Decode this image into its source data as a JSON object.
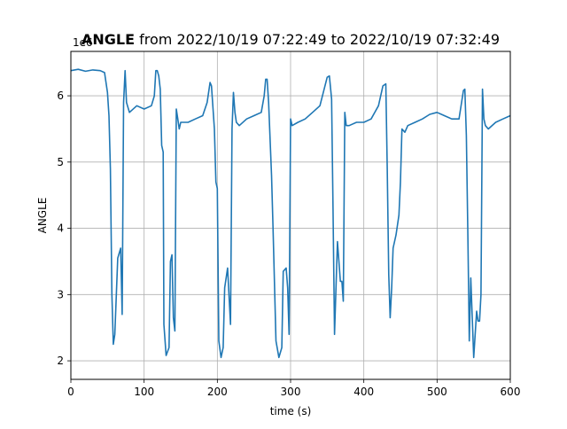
{
  "chart_data": {
    "type": "line",
    "title_bold": "ANGLE",
    "title_rest": " from 2022/10/19 07:22:49 to 2022/10/19 07:32:49",
    "xlabel": "time (s)",
    "ylabel": "ANGLE",
    "y_multiplier_label": "1e6",
    "xlim": [
      0,
      600
    ],
    "ylim": [
      1.72,
      6.67
    ],
    "x_ticks": [
      0,
      100,
      200,
      300,
      400,
      500,
      600
    ],
    "y_ticks": [
      2,
      3,
      4,
      5,
      6
    ],
    "grid": true,
    "line_color": "#1f77b4",
    "series": [
      {
        "x": [
          0,
          10,
          20,
          30,
          40,
          46,
          50,
          52,
          54,
          56,
          58,
          60,
          64,
          68,
          70,
          72,
          74,
          76,
          80,
          90,
          100,
          110,
          114,
          116,
          118,
          120,
          122,
          124,
          126,
          127,
          130,
          134,
          136,
          138,
          140,
          142,
          144,
          146,
          148,
          150,
          160,
          170,
          180,
          186,
          190,
          192,
          196,
          198,
          200,
          202,
          205,
          208,
          210,
          214,
          218,
          220,
          222,
          224,
          226,
          230,
          240,
          250,
          260,
          264,
          266,
          268,
          270,
          274,
          276,
          280,
          284,
          288,
          290,
          294,
          296,
          298,
          300,
          302,
          310,
          320,
          330,
          340,
          350,
          353,
          356,
          358,
          360,
          364,
          368,
          370,
          372,
          374,
          376,
          380,
          390,
          400,
          410,
          420,
          426,
          430,
          432,
          434,
          436,
          438,
          440,
          444,
          448,
          450,
          452,
          456,
          460,
          470,
          480,
          490,
          500,
          510,
          520,
          530,
          536,
          538,
          540,
          542,
          544,
          546,
          550,
          554,
          556,
          558,
          560,
          562,
          564,
          566,
          570,
          580,
          590,
          600
        ],
        "values": [
          6.38,
          6.4,
          6.37,
          6.39,
          6.38,
          6.35,
          6.05,
          5.7,
          4.9,
          3.0,
          2.25,
          2.4,
          3.55,
          3.7,
          2.7,
          5.9,
          6.38,
          5.9,
          5.75,
          5.85,
          5.8,
          5.85,
          6.0,
          6.38,
          6.38,
          6.3,
          6.1,
          5.25,
          5.15,
          2.55,
          2.08,
          2.2,
          3.5,
          3.6,
          2.65,
          2.45,
          5.8,
          5.65,
          5.5,
          5.6,
          5.6,
          5.65,
          5.7,
          5.9,
          6.2,
          6.15,
          5.5,
          4.7,
          4.6,
          2.3,
          2.05,
          2.2,
          3.1,
          3.4,
          2.55,
          5.5,
          6.05,
          5.75,
          5.6,
          5.55,
          5.65,
          5.7,
          5.75,
          6.0,
          6.25,
          6.25,
          5.9,
          4.8,
          4.0,
          2.3,
          2.05,
          2.2,
          3.35,
          3.4,
          3.1,
          2.4,
          5.65,
          5.55,
          5.6,
          5.65,
          5.75,
          5.85,
          6.28,
          6.3,
          5.95,
          4.3,
          2.4,
          3.8,
          3.2,
          3.2,
          2.9,
          5.75,
          5.55,
          5.55,
          5.6,
          5.6,
          5.65,
          5.85,
          6.15,
          6.18,
          4.9,
          3.3,
          2.65,
          3.1,
          3.7,
          3.9,
          4.2,
          4.7,
          5.5,
          5.45,
          5.55,
          5.6,
          5.65,
          5.72,
          5.75,
          5.7,
          5.65,
          5.65,
          6.08,
          6.1,
          5.4,
          3.9,
          2.3,
          3.25,
          2.05,
          2.75,
          2.6,
          2.6,
          3.0,
          6.1,
          5.65,
          5.55,
          5.5,
          5.6,
          5.65,
          5.7
        ]
      }
    ]
  }
}
